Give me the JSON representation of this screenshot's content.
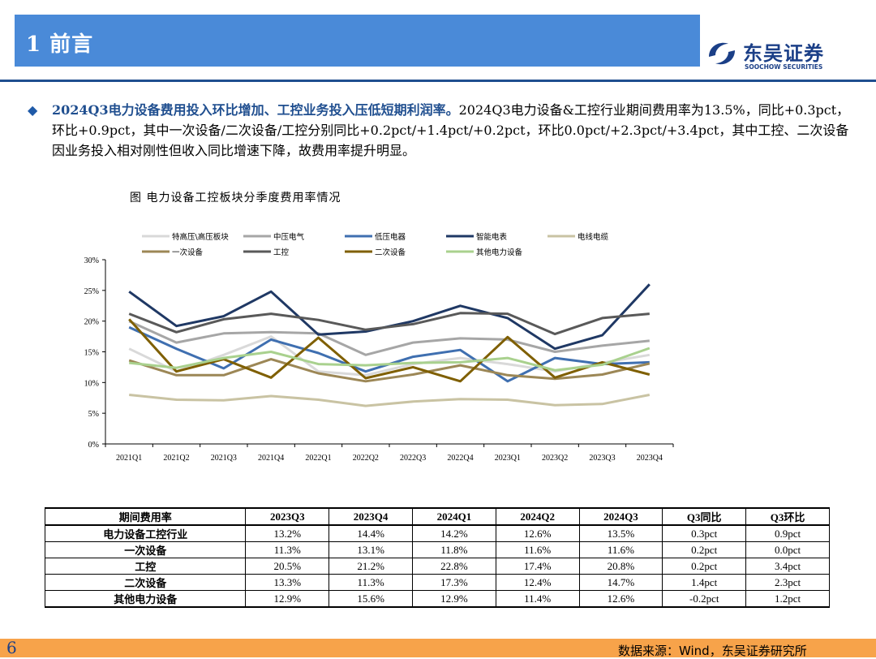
{
  "header": {
    "title": "1 前言"
  },
  "logo": {
    "name_cn": "东吴证券",
    "name_en": "SOOCHOW SECURITIES"
  },
  "paragraph": {
    "bullet": "◆",
    "bold": "2024Q3电力设备费用投入环比增加、工控业务投入压低短期利润率。",
    "rest": "2024Q3电力设备&工控行业期间费用率为13.5%，同比+0.3pct，环比+0.9pct，其中一次设备/二次设备/工控分别同比+0.2pct/+1.4pct/+0.2pct，环比0.0pct/+2.3pct/+3.4pct，其中工控、二次设备因业务投入相对刚性但收入同比增速下降，故费用率提升明显。"
  },
  "chart_title": "图 电力设备工控板块分季度费用率情况",
  "chart_data": {
    "type": "line",
    "categories": [
      "2021Q1",
      "2021Q2",
      "2021Q3",
      "2021Q4",
      "2022Q1",
      "2022Q2",
      "2022Q3",
      "2022Q4",
      "2023Q1",
      "2023Q2",
      "2023Q3",
      "2023Q4"
    ],
    "ylim": [
      0,
      30
    ],
    "yticks": [
      "0%",
      "5%",
      "10%",
      "15%",
      "20%",
      "25%",
      "30%"
    ],
    "ytick_values": [
      0,
      5,
      10,
      15,
      20,
      25,
      30
    ],
    "series": [
      {
        "name": "特高压\\高压板块",
        "color": "#d9d9d9",
        "values": [
          15.5,
          11.8,
          14.5,
          17.5,
          11.8,
          11.2,
          13.0,
          14.0,
          13.0,
          11.8,
          13.2,
          14.5
        ]
      },
      {
        "name": "中压电气",
        "color": "#a6a6a6",
        "values": [
          20.0,
          16.5,
          18.0,
          18.2,
          18.0,
          14.5,
          16.5,
          17.2,
          17.0,
          15.0,
          16.0,
          16.8
        ]
      },
      {
        "name": "低压电器",
        "color": "#3f6fb0",
        "values": [
          19.0,
          15.5,
          12.3,
          17.0,
          14.8,
          11.8,
          14.2,
          15.3,
          10.2,
          14.0,
          13.0,
          13.3
        ]
      },
      {
        "name": "智能电表",
        "color": "#1f3864",
        "values": [
          24.8,
          19.2,
          20.8,
          24.8,
          17.8,
          18.3,
          20.0,
          22.5,
          20.5,
          15.5,
          17.7,
          26.0
        ]
      },
      {
        "name": "电线电缆",
        "color": "#c9c3a3",
        "values": [
          8.0,
          7.2,
          7.1,
          7.8,
          7.2,
          6.2,
          6.9,
          7.3,
          7.2,
          6.3,
          6.5,
          8.0
        ]
      },
      {
        "name": "一次设备",
        "color": "#9c8756",
        "values": [
          13.6,
          11.2,
          11.2,
          13.8,
          11.5,
          10.2,
          11.3,
          12.8,
          11.2,
          10.6,
          11.3,
          13.1
        ]
      },
      {
        "name": "工控",
        "color": "#595959",
        "values": [
          21.2,
          18.2,
          20.3,
          21.2,
          20.2,
          18.6,
          19.5,
          21.3,
          21.2,
          17.9,
          20.5,
          21.2
        ]
      },
      {
        "name": "二次设备",
        "color": "#7f5f00",
        "values": [
          20.3,
          11.8,
          13.8,
          10.8,
          17.3,
          10.7,
          12.5,
          10.2,
          17.4,
          10.8,
          13.3,
          11.3
        ]
      },
      {
        "name": "其他电力设备",
        "color": "#a9d18e",
        "values": [
          13.2,
          12.4,
          14.0,
          15.0,
          13.0,
          12.8,
          13.2,
          13.3,
          14.0,
          12.0,
          12.9,
          15.6
        ]
      }
    ]
  },
  "table": {
    "headers": [
      "期间费用率",
      "2023Q3",
      "2023Q4",
      "2024Q1",
      "2024Q2",
      "2024Q3",
      "Q3同比",
      "Q3环比"
    ],
    "rows": [
      [
        "电力设备工控行业",
        "13.2%",
        "14.4%",
        "14.2%",
        "12.6%",
        "13.5%",
        "0.3pct",
        "0.9pct"
      ],
      [
        "一次设备",
        "11.3%",
        "13.1%",
        "11.8%",
        "11.6%",
        "11.6%",
        "0.2pct",
        "0.0pct"
      ],
      [
        "工控",
        "20.5%",
        "21.2%",
        "22.8%",
        "17.4%",
        "20.8%",
        "0.2pct",
        "3.4pct"
      ],
      [
        "二次设备",
        "13.3%",
        "11.3%",
        "17.3%",
        "12.4%",
        "14.7%",
        "1.4pct",
        "2.3pct"
      ],
      [
        "其他电力设备",
        "12.9%",
        "15.6%",
        "12.9%",
        "11.4%",
        "12.6%",
        "-0.2pct",
        "1.2pct"
      ]
    ]
  },
  "footer": {
    "page": "6",
    "source": "数据来源：Wind，东吴证券研究所"
  },
  "colors": {
    "header_blue": "#4a8ad8",
    "brand_navy": "#1b3f87",
    "footer_orange": "#f7a34a"
  }
}
